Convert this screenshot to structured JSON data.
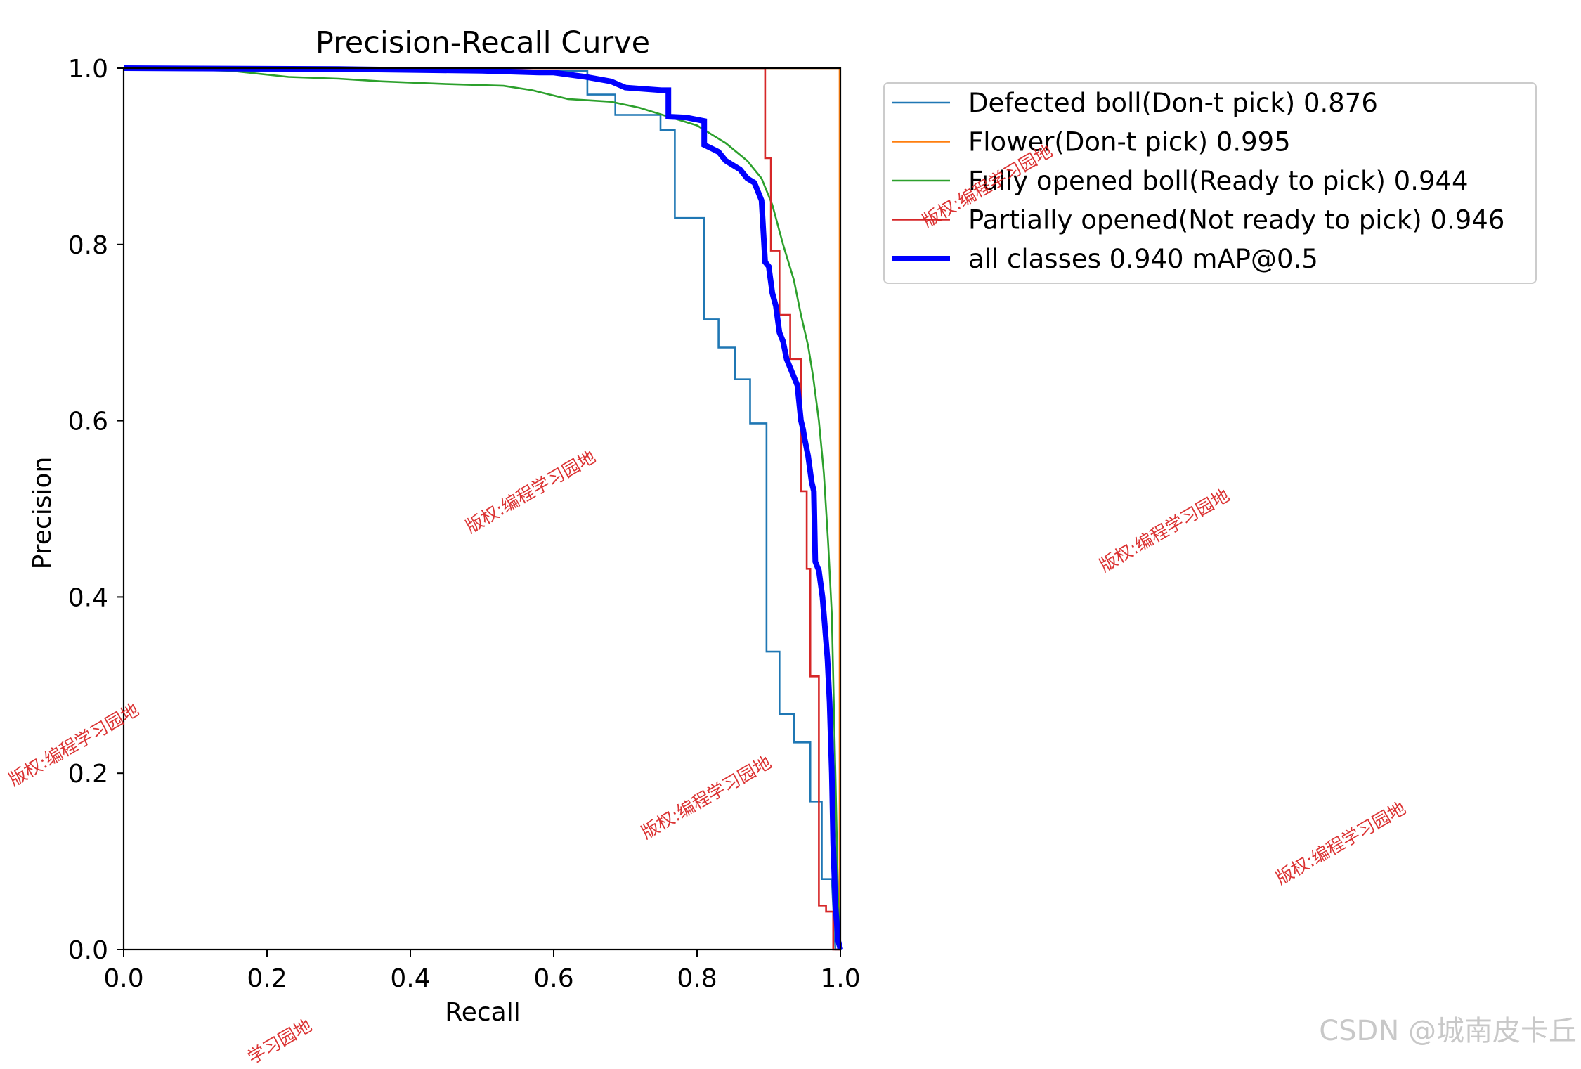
{
  "chart_data": {
    "type": "line",
    "title": "Precision-Recall Curve",
    "xlabel": "Recall",
    "ylabel": "Precision",
    "xlim": [
      0.0,
      1.0
    ],
    "ylim": [
      0.0,
      1.0
    ],
    "xticks": [
      "0.0",
      "0.2",
      "0.4",
      "0.6",
      "0.8",
      "1.0"
    ],
    "yticks": [
      "0.0",
      "0.2",
      "0.4",
      "0.6",
      "0.8",
      "1.0"
    ],
    "legend_position": "outside top-right",
    "series": [
      {
        "name": "Defected boll(Don-t pick) 0.876",
        "color": "#1f77b4",
        "width": "thin",
        "x": [
          0.0,
          0.18,
          0.647,
          0.647,
          0.686,
          0.686,
          0.749,
          0.749,
          0.769,
          0.769,
          0.81,
          0.81,
          0.83,
          0.83,
          0.853,
          0.853,
          0.874,
          0.874,
          0.897,
          0.897,
          0.915,
          0.915,
          0.935,
          0.935,
          0.958,
          0.958,
          0.974,
          0.974,
          0.988,
          0.988,
          0.993,
          1.0
        ],
        "y": [
          1.0,
          0.997,
          0.997,
          0.97,
          0.97,
          0.947,
          0.947,
          0.93,
          0.93,
          0.83,
          0.83,
          0.715,
          0.715,
          0.683,
          0.683,
          0.647,
          0.647,
          0.597,
          0.597,
          0.338,
          0.338,
          0.267,
          0.267,
          0.235,
          0.235,
          0.168,
          0.168,
          0.08,
          0.08,
          0.08,
          0.0,
          0.0
        ]
      },
      {
        "name": "Flower(Don-t pick) 0.995",
        "color": "#ff7f0e",
        "width": "thin",
        "x": [
          0.0,
          0.999,
          0.999,
          1.0
        ],
        "y": [
          1.0,
          1.0,
          0.0,
          0.0
        ]
      },
      {
        "name": "Fully opened boll(Ready to pick) 0.944",
        "color": "#2ca02c",
        "width": "thin",
        "x": [
          0.0,
          0.15,
          0.23,
          0.3,
          0.36,
          0.45,
          0.53,
          0.57,
          0.62,
          0.68,
          0.72,
          0.76,
          0.8,
          0.84,
          0.87,
          0.89,
          0.905,
          0.92,
          0.935,
          0.945,
          0.955,
          0.962,
          0.97,
          0.977,
          0.983,
          0.988,
          0.993,
          0.997,
          1.0
        ],
        "y": [
          1.0,
          0.997,
          0.99,
          0.988,
          0.985,
          0.982,
          0.98,
          0.975,
          0.965,
          0.962,
          0.955,
          0.945,
          0.935,
          0.915,
          0.895,
          0.875,
          0.845,
          0.8,
          0.76,
          0.72,
          0.685,
          0.65,
          0.6,
          0.54,
          0.46,
          0.38,
          0.2,
          0.05,
          0.0
        ]
      },
      {
        "name": "Partially opened(Not ready to pick) 0.946",
        "color": "#d62728",
        "width": "thin",
        "x": [
          0.0,
          0.895,
          0.895,
          0.903,
          0.903,
          0.915,
          0.915,
          0.93,
          0.93,
          0.945,
          0.945,
          0.953,
          0.953,
          0.958,
          0.958,
          0.97,
          0.97,
          0.98,
          0.98,
          0.99,
          0.99,
          1.0
        ],
        "y": [
          1.0,
          1.0,
          0.898,
          0.898,
          0.793,
          0.793,
          0.72,
          0.72,
          0.67,
          0.67,
          0.52,
          0.52,
          0.432,
          0.432,
          0.31,
          0.31,
          0.05,
          0.05,
          0.043,
          0.043,
          0.0,
          0.0
        ]
      },
      {
        "name": "all classes 0.940 mAP@0.5",
        "color": "#0000ff",
        "width": "thick",
        "x": [
          0.0,
          0.3,
          0.5,
          0.58,
          0.6,
          0.645,
          0.68,
          0.7,
          0.75,
          0.76,
          0.76,
          0.785,
          0.81,
          0.81,
          0.83,
          0.84,
          0.86,
          0.87,
          0.88,
          0.89,
          0.895,
          0.9,
          0.905,
          0.91,
          0.915,
          0.92,
          0.925,
          0.93,
          0.94,
          0.945,
          0.948,
          0.95,
          0.955,
          0.96,
          0.963,
          0.965,
          0.97,
          0.975,
          0.978,
          0.982,
          0.985,
          0.988,
          0.99,
          0.993,
          0.997,
          1.0
        ],
        "y": [
          1.0,
          0.999,
          0.997,
          0.995,
          0.995,
          0.99,
          0.985,
          0.978,
          0.975,
          0.975,
          0.945,
          0.944,
          0.94,
          0.913,
          0.905,
          0.895,
          0.885,
          0.875,
          0.87,
          0.85,
          0.78,
          0.775,
          0.745,
          0.73,
          0.7,
          0.69,
          0.67,
          0.66,
          0.64,
          0.6,
          0.59,
          0.58,
          0.56,
          0.53,
          0.52,
          0.44,
          0.43,
          0.4,
          0.37,
          0.33,
          0.28,
          0.2,
          0.12,
          0.05,
          0.01,
          0.0
        ]
      }
    ]
  },
  "watermarks": {
    "text": "版权:编程学习园地",
    "partial_text": "学习园地"
  },
  "credit": "CSDN @城南皮卡丘"
}
